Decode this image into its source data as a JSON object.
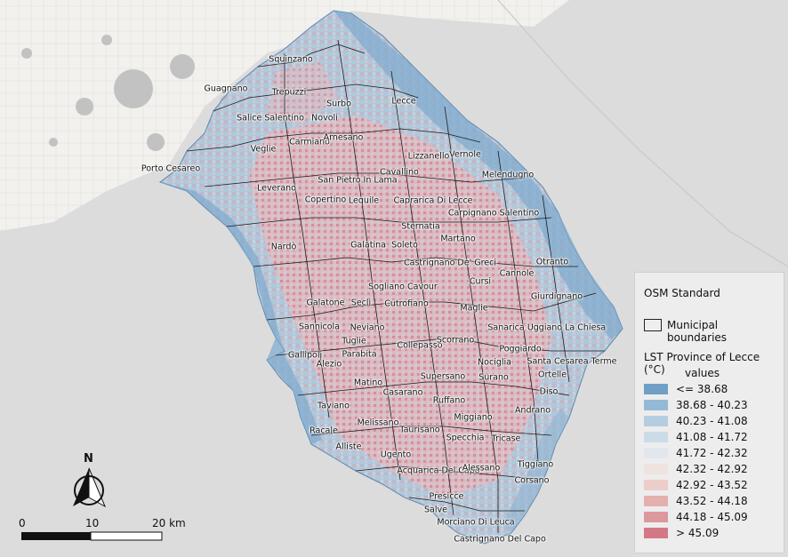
{
  "labels": [
    {
      "name": "Squinzano"
    },
    {
      "name": "Guagnano"
    },
    {
      "name": "Trepuzzi"
    },
    {
      "name": "Surbo"
    },
    {
      "name": "Lecce"
    },
    {
      "name": "Salice Salentino"
    },
    {
      "name": "Novoli"
    },
    {
      "name": "Carmiano"
    },
    {
      "name": "Arnesano"
    },
    {
      "name": "Veglie"
    },
    {
      "name": "Porto Cesareo"
    },
    {
      "name": "Lizzanello"
    },
    {
      "name": "Vernole"
    },
    {
      "name": "Cavallino"
    },
    {
      "name": "Melendugno"
    },
    {
      "name": "Leverano"
    },
    {
      "name": "San Pietro In Lama"
    },
    {
      "name": "Copertino"
    },
    {
      "name": "Lequile"
    },
    {
      "name": "Caprarica Di Lecce"
    },
    {
      "name": "Carpignano Salentino"
    },
    {
      "name": "Sternatia"
    },
    {
      "name": "Nardò"
    },
    {
      "name": "Galatina"
    },
    {
      "name": "Soleto"
    },
    {
      "name": "Martano"
    },
    {
      "name": "Castrignano De' Greci"
    },
    {
      "name": "Otranto"
    },
    {
      "name": "Cannole"
    },
    {
      "name": "Sogliano Cavour"
    },
    {
      "name": "Cursi"
    },
    {
      "name": "Giurdignano"
    },
    {
      "name": "Galatone"
    },
    {
      "name": "Seclì"
    },
    {
      "name": "Cutrofiano"
    },
    {
      "name": "Maglie"
    },
    {
      "name": "Neviano"
    },
    {
      "name": "Sannicola"
    },
    {
      "name": "Sanarica"
    },
    {
      "name": "Uggiano La Chiesa"
    },
    {
      "name": "Tuglie"
    },
    {
      "name": "Collepasso"
    },
    {
      "name": "Scorrano"
    },
    {
      "name": "Poggiardo"
    },
    {
      "name": "Gallipoli"
    },
    {
      "name": "Parabita"
    },
    {
      "name": "Alezio"
    },
    {
      "name": "Nociglia"
    },
    {
      "name": "Santa Cesarea Terme"
    },
    {
      "name": "Ortelle"
    },
    {
      "name": "Supersano"
    },
    {
      "name": "Surano"
    },
    {
      "name": "Matino"
    },
    {
      "name": "Diso"
    },
    {
      "name": "Casarano"
    },
    {
      "name": "Ruffano"
    },
    {
      "name": "Taviano"
    },
    {
      "name": "Andrano"
    },
    {
      "name": "Melissano"
    },
    {
      "name": "Miggiano"
    },
    {
      "name": "Racale"
    },
    {
      "name": "Taurisano"
    },
    {
      "name": "Specchia"
    },
    {
      "name": "Tricase"
    },
    {
      "name": "Alliste"
    },
    {
      "name": "Ugento"
    },
    {
      "name": "Acquarica Del Capo"
    },
    {
      "name": "Alessano"
    },
    {
      "name": "Tiggiano"
    },
    {
      "name": "Corsano"
    },
    {
      "name": "Presicce"
    },
    {
      "name": "Salve"
    },
    {
      "name": "Morciano Di Leuca"
    },
    {
      "name": "Castrignano Del Capo"
    }
  ],
  "legend": {
    "basemap": "OSM Standard",
    "boundaries_label": "Municipal boundaries",
    "boundaries_line1": "Municipal",
    "boundaries_line2": "boundaries",
    "lst_title": "LST Province of Lecce (°C)",
    "lst_subtitle": "values",
    "classes": [
      {
        "label": "<= 38.68",
        "color": "#6f9fc7"
      },
      {
        "label": "38.68 - 40.23",
        "color": "#94b9d6"
      },
      {
        "label": "40.23 - 41.08",
        "color": "#b5cde0"
      },
      {
        "label": "41.08 - 41.72",
        "color": "#cbdce6"
      },
      {
        "label": "41.72 - 42.32",
        "color": "#e1e7ec"
      },
      {
        "label": "42.32 - 42.92",
        "color": "#efe3df"
      },
      {
        "label": "42.92 - 43.52",
        "color": "#edcdc9"
      },
      {
        "label": "43.52 - 44.18",
        "color": "#e3b0ad"
      },
      {
        "label": "44.18 - 45.09",
        "color": "#dc989d"
      },
      {
        "label": "> 45.09",
        "color": "#d47887"
      }
    ]
  },
  "scale_bar": {
    "labels": [
      "0",
      "10",
      "20 km"
    ]
  },
  "north_arrow": {
    "label": "N"
  }
}
